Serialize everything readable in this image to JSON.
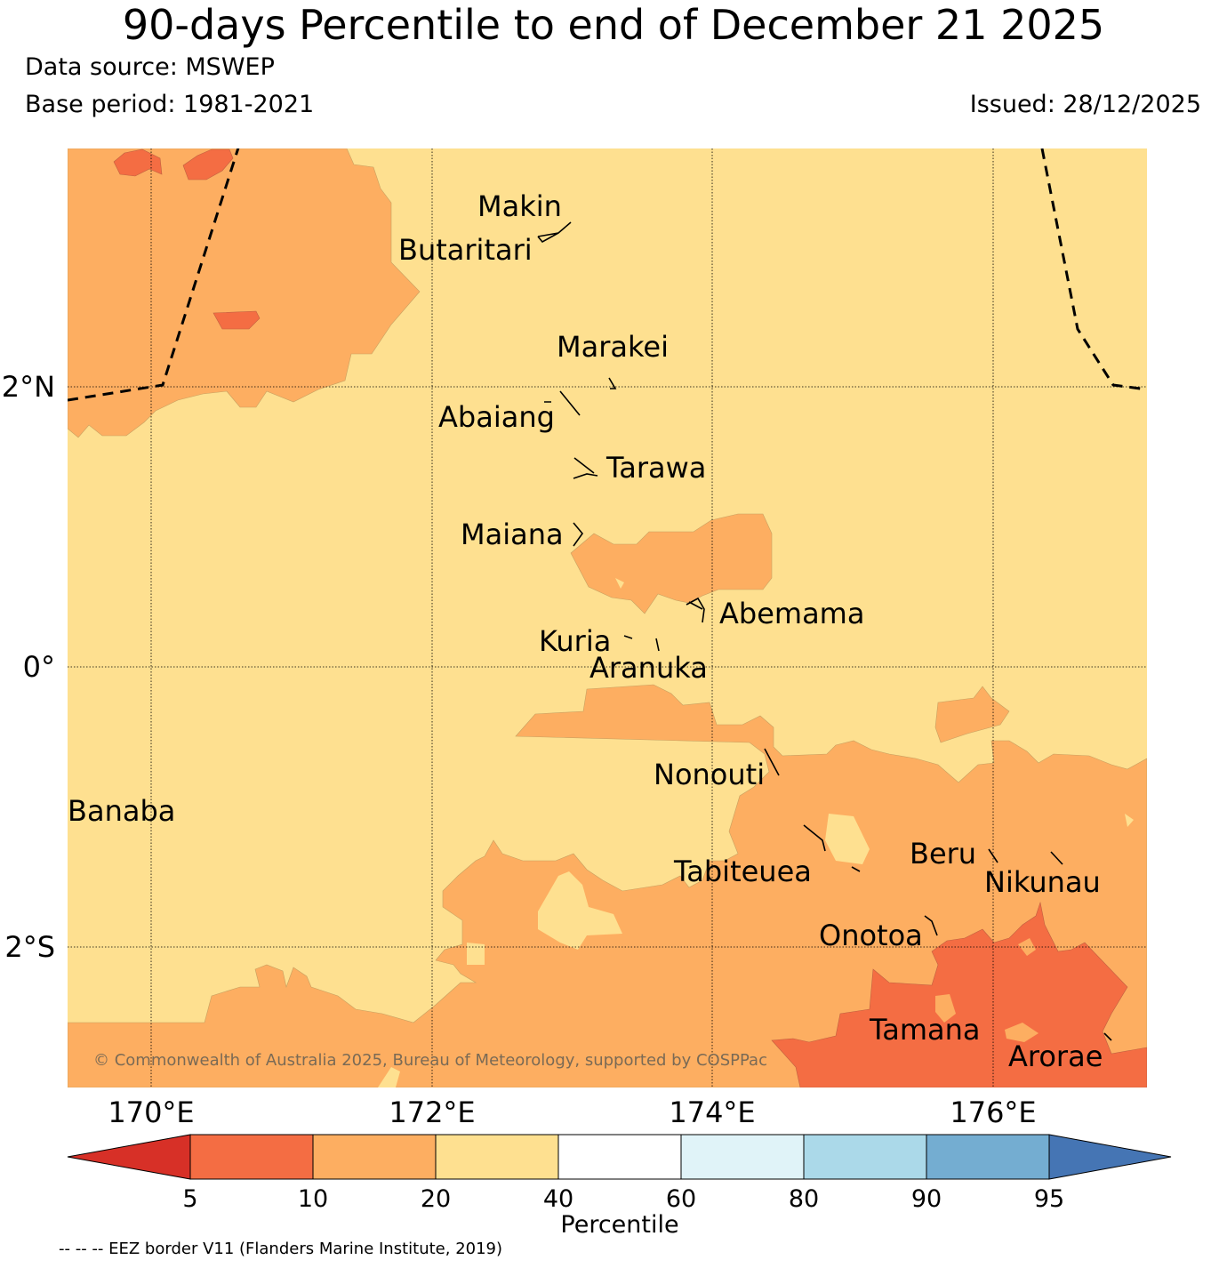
{
  "title": "90-days Percentile to end of December 21 2025",
  "data_source": "Data source: MSWEP",
  "base_period": "Base period: 1981-2021",
  "issued": "Issued: 28/12/2025",
  "copyright": "© Commonwealth of Australia 2025, Bureau of Meteorology, supported by COSPPac",
  "eez_note": "-- -- -- EEZ border V11 (Flanders Marine Institute, 2019)",
  "axes": {
    "lat_labels": [
      "2°N",
      "0°",
      "2°S"
    ],
    "lon_labels": [
      "170°E",
      "172°E",
      "174°E",
      "176°E"
    ]
  },
  "islands": [
    "Makin",
    "Butaritari",
    "Marakei",
    "Abaiang",
    "Tarawa",
    "Maiana",
    "Abemama",
    "Kuria",
    "Aranuka",
    "Nonouti",
    "Banaba",
    "Tabiteuea",
    "Beru",
    "Nikunau",
    "Onotoa",
    "Tamana",
    "Arorae"
  ],
  "legend": {
    "title": "Percentile",
    "ticks": [
      "5",
      "10",
      "20",
      "40",
      "60",
      "80",
      "90",
      "95"
    ],
    "colors": [
      "#d73027",
      "#f46d43",
      "#fdae61",
      "#fee090",
      "#ffffff",
      "#e0f3f8",
      "#abd9e9",
      "#74add1",
      "#4575b4"
    ]
  }
}
